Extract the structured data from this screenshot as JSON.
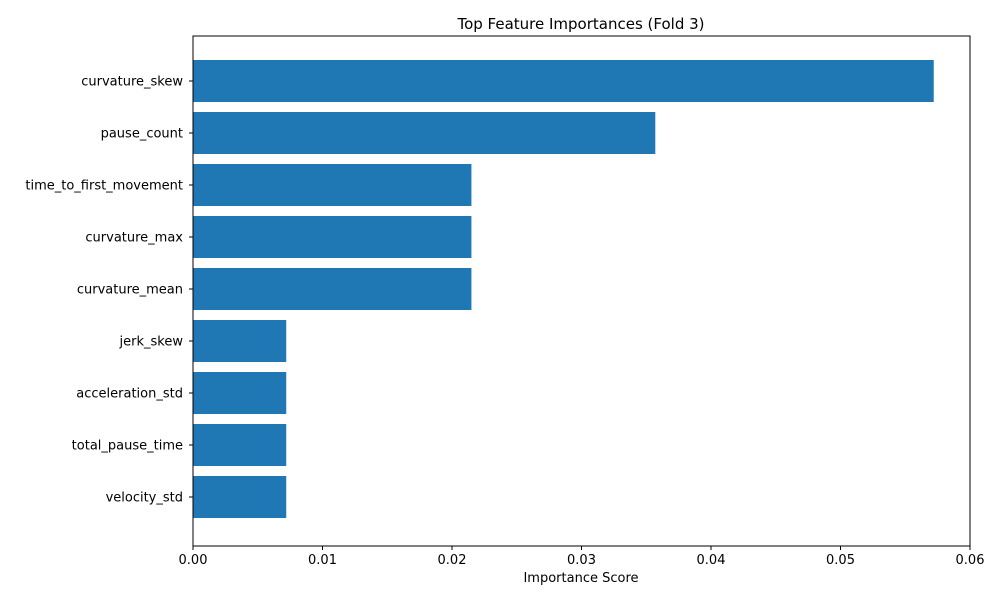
{
  "chart_data": {
    "type": "bar",
    "orientation": "horizontal",
    "title": "Top Feature Importances (Fold 3)",
    "xlabel": "Importance Score",
    "ylabel": "",
    "xlim": [
      0,
      0.06
    ],
    "xticks": [
      "0.00",
      "0.01",
      "0.02",
      "0.03",
      "0.04",
      "0.05",
      "0.06"
    ],
    "categories": [
      "curvature_skew",
      "pause_count",
      "time_to_first_movement",
      "curvature_max",
      "curvature_mean",
      "jerk_skew",
      "acceleration_std",
      "total_pause_time",
      "velocity_std"
    ],
    "values": [
      0.0572,
      0.0357,
      0.0215,
      0.0215,
      0.0215,
      0.0072,
      0.0072,
      0.0072,
      0.0072
    ],
    "bar_color": "#1f77b4",
    "grid": false,
    "legend": "none"
  }
}
